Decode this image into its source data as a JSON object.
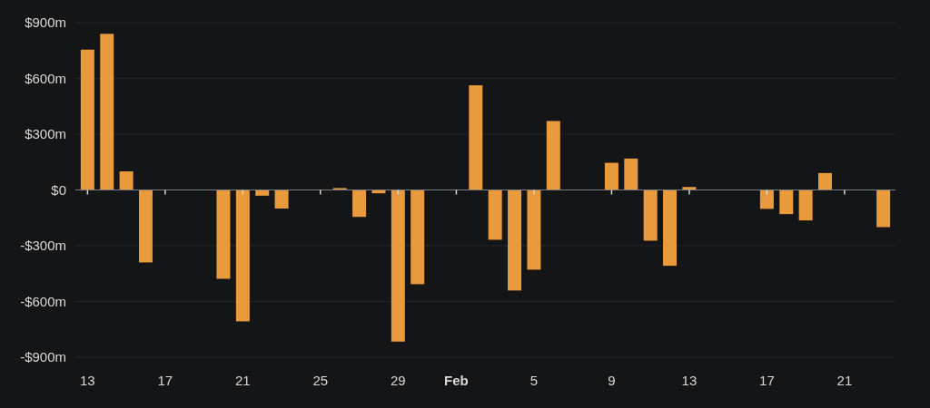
{
  "chart_data": {
    "type": "bar",
    "color": "#e99a3c",
    "x": [
      "--01-13",
      "--01-14",
      "--01-15",
      "--01-16",
      "--01-20",
      "--01-21",
      "--01-22",
      "--01-23",
      "--01-26",
      "--01-27",
      "--01-28",
      "--01-29",
      "--01-30",
      "--02-02",
      "--02-03",
      "--02-04",
      "--02-05",
      "--02-06",
      "--02-09",
      "--02-10",
      "--02-11",
      "--02-12",
      "--02-13",
      "--02-17",
      "--02-18",
      "--02-19",
      "--02-20",
      "--02-23"
    ],
    "values": [
      755,
      840,
      100,
      -390,
      -478,
      -707,
      -31,
      -100,
      10,
      -145,
      -18,
      -816,
      -507,
      563,
      -268,
      -541,
      -429,
      371,
      146,
      169,
      -273,
      -408,
      16,
      -102,
      -130,
      -164,
      91,
      -200
    ],
    "xlim": [
      "--01-12T09:00",
      "--02-23T15:00"
    ],
    "xticks": [
      {
        "value": "--01-13",
        "label": "13"
      },
      {
        "value": "--01-17",
        "label": "17"
      },
      {
        "value": "--01-21",
        "label": "21"
      },
      {
        "value": "--01-25",
        "label": "25"
      },
      {
        "value": "--01-29",
        "label": "29"
      },
      {
        "value": "--02-01",
        "label": "Feb"
      },
      {
        "value": "--02-05",
        "label": "5"
      },
      {
        "value": "--02-09",
        "label": "9"
      },
      {
        "value": "--02-13",
        "label": "13"
      },
      {
        "value": "--02-17",
        "label": "17"
      },
      {
        "value": "--02-21",
        "label": "21"
      }
    ],
    "ylim": [
      -900,
      900
    ],
    "yticks": [
      {
        "value": -900,
        "label": "-$900m"
      },
      {
        "value": -600,
        "label": "-$600m"
      },
      {
        "value": -300,
        "label": "-$300m"
      },
      {
        "value": 0,
        "label": "$0"
      },
      {
        "value": 300,
        "label": "$300m"
      },
      {
        "value": 600,
        "label": "$600m"
      },
      {
        "value": 900,
        "label": "$900m"
      }
    ],
    "grid": "y"
  }
}
